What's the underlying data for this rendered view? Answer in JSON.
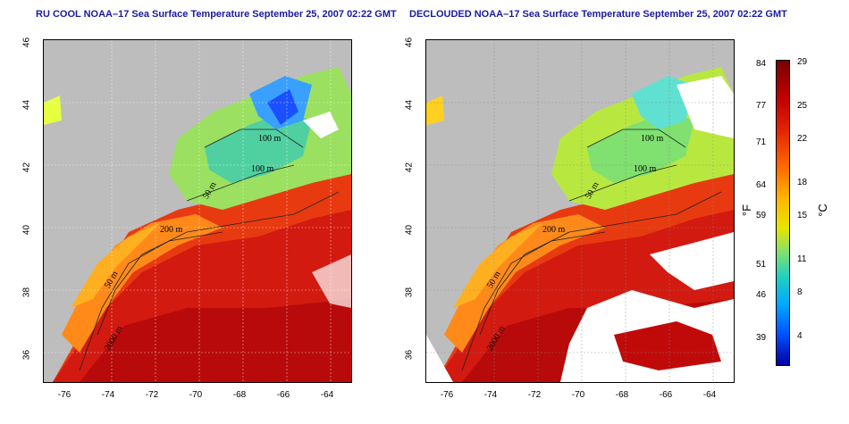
{
  "left_map": {
    "title": "RU COOL NOAA–17 Sea Surface Temperature September 25, 2007 02:22 GMT",
    "contour_labels": [
      "100 m",
      "100 m",
      "50 m",
      "200 m",
      "50 m",
      "2000 m"
    ]
  },
  "right_map": {
    "title": "DECLOUDED NOAA–17 Sea Surface Temperature September 25, 2007 02:22 GMT",
    "contour_labels": [
      "100 m",
      "100 m",
      "50 m",
      "200 m",
      "50 m",
      "2000 m"
    ]
  },
  "x_ticks": [
    "-76",
    "-74",
    "-72",
    "-70",
    "-68",
    "-66",
    "-64"
  ],
  "y_ticks": [
    "46",
    "44",
    "42",
    "40",
    "38",
    "36"
  ],
  "colorbar": {
    "fahrenheit_ticks": [
      "84",
      "77",
      "71",
      "64",
      "59",
      "51",
      "46",
      "39"
    ],
    "celsius_ticks": [
      "29",
      "25",
      "22",
      "18",
      "15",
      "11",
      "8",
      "4"
    ],
    "fahrenheit_unit": "°F",
    "celsius_unit": "°C"
  }
}
